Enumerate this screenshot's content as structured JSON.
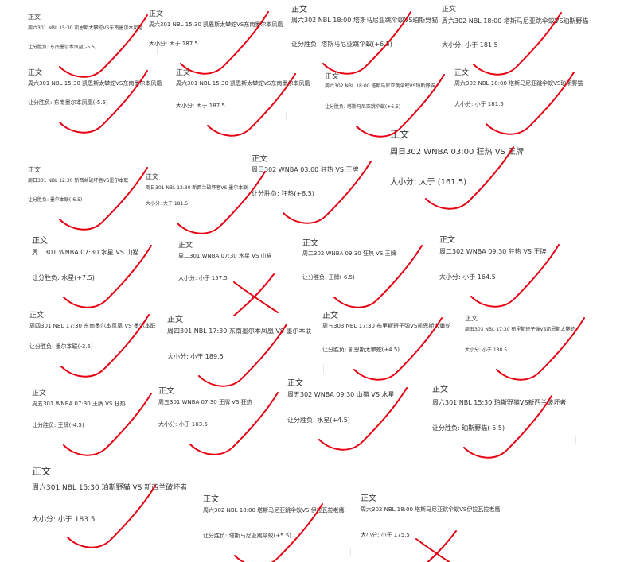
{
  "colors": {
    "text": "#333333",
    "mark": "#e60012"
  },
  "cards": [
    {
      "title": "正文",
      "match": "周六301  NBL  15:30 凯恩斯太攀蛇VS东南墨尔本凤凰",
      "bet": "让分胜负:    东南墨尔本凤凰(-5.5)",
      "mark": "check"
    },
    {
      "title": "正文",
      "match": "周六301  NBL  15:30 凯恩斯太攀蛇VS东南墨尔本凤凰",
      "bet": "大小分:    大于 187.5",
      "mark": "check"
    },
    {
      "title": "正文",
      "match": "周六302  NBL  18:00 塔斯马尼亚跳伞蚁VS珀斯野猫",
      "bet": "让分胜负:    塔斯马尼亚跳伞蚁(+6.5)",
      "mark": "check"
    },
    {
      "title": "正文",
      "match": "周六302  NBL  18:00 塔斯马尼亚跳伞蚁VS珀斯野猫",
      "bet": "大小分:    小于 181.5",
      "mark": "check"
    },
    {
      "title": "正文",
      "match": "周六301  NBL  15:30 凯恩斯太攀蛇VS东南墨尔本凤凰",
      "bet": "让分胜负:    东南墨尔本凤凰(-5.5)",
      "mark": "check"
    },
    {
      "title": "正文",
      "match": "周六301  NBL  15:30 凯恩斯太攀蛇VS东南墨尔本凤凰",
      "bet": "大小分:    大于 187.5",
      "mark": "check"
    },
    {
      "title": "正文",
      "match": "周六302  NBL  18:00 塔斯马尼亚跳伞蚁VS珀斯野猫",
      "bet": "让分胜负:    塔斯马尼亚跳伞蚁(+6.5)",
      "mark": "check"
    },
    {
      "title": "正文",
      "match": "周六302  NBL  18:00 塔斯马尼亚跳伞蚁VS珀斯野猫",
      "bet": "大小分:    小于 181.5",
      "mark": "check"
    },
    {
      "title": "正文",
      "match": "周日301  NBL  12:30    新西兰破坏者VS墨尔本联",
      "bet": "让分胜负:    墨尔本联(-6.5)",
      "mark": "check"
    },
    {
      "title": "正文",
      "match": "周日301  NBL  12:30 新西兰破坏者VS 墨尔本联",
      "bet": "大小分:    大于 181.5",
      "mark": "check"
    },
    {
      "title": "正文",
      "match": "周日302  WNBA  03:00  狂热 VS   王牌",
      "bet": "让分胜负:    狂热(+8.5)",
      "mark": "check"
    },
    {
      "title": "正文",
      "match": "周日302   WNBA  03:00  狂热 VS   王牌",
      "bet": "大小分:      大于 (161.5)",
      "mark": "check"
    },
    {
      "title": "正文",
      "match": "周二301   WNBA  07:30  水星 VS   山猫",
      "bet": "让分胜负:    水星(+7.5)",
      "mark": "check"
    },
    {
      "title": "正文",
      "match": "周二301   WNBA  07:30  水星 VS   山猫",
      "bet": "大小分:    小于  157.5",
      "mark": "cross"
    },
    {
      "title": "正文",
      "match": "周二302    WNBA  09:30       狂热 VS    王牌",
      "bet": "让分胜负:    王牌(-6.5)",
      "mark": "check"
    },
    {
      "title": "正文",
      "match": "周二302   WNBA  09:30   狂热 VS   王牌",
      "bet": "大小分:     小于  164.5",
      "mark": "check"
    },
    {
      "title": "正文",
      "match": "周四301   NBL  17:30 东南墨尔本凤凰 VS 墨尔本联",
      "bet": "让分胜负:    墨尔本联(-3.5)",
      "mark": "check"
    },
    {
      "title": "正文",
      "match": "周四301   NBL  17:30  东南墨尔本凤凰 VS 墨尔本联",
      "bet": "大小分:     小于 189.5",
      "mark": "check"
    },
    {
      "title": "正文",
      "match": "周五303   NBL  17:30 布里斯班子弹VS凯恩斯太攀蛇",
      "bet": "让分胜负:    凯恩斯太攀蛇(+4.5)",
      "mark": "check"
    },
    {
      "title": "正文",
      "match": "周五303   NBL  17:30 布里斯班子弹VS凯恩斯太攀蛇",
      "bet": "大小分:    小于  188.5",
      "mark": "check"
    },
    {
      "title": "正文",
      "match": "周五301   WNBA  07:30  王牌 VS   狂热",
      "bet": "让分胜负:    王牌(-4.5)",
      "mark": "check"
    },
    {
      "title": "正文",
      "match": "周五301   WNBA  07:30  王牌 VS   狂热",
      "bet": "大小分:    小于  163.5",
      "mark": "check"
    },
    {
      "title": "正文",
      "match": "周五302   WNBA  09:30   山猫 VS   水星",
      "bet": "让分胜负:    水星(+4.5)",
      "mark": "check"
    },
    {
      "title": "正文",
      "match": "周六301   NBL  15:30   珀斯野猫VS新西兰破坏者",
      "bet": "让分胜负:    珀斯野猫(-5.5)",
      "mark": "check"
    },
    {
      "title": "正文",
      "match": "周六301   NBL   15:30   珀斯野猫 VS 新西兰破坏者",
      "bet": "大小分:     小于  183.5",
      "mark": "check"
    },
    {
      "title": "正文",
      "match": "周六302   NBL   18:00  塔斯马尼亚跳伞蚁VS 伊拉瓦拉老鹰",
      "bet": "让分胜负:    塔斯马尼亚跳伞蚁(+5.5)",
      "mark": "check"
    },
    {
      "title": "正文",
      "match": "周六302   NBL   18:00  塔斯马尼亚跳伞蚁VS伊拉瓦拉老鹰",
      "bet": "大小分:     小于   175.5",
      "mark": "cross"
    }
  ]
}
